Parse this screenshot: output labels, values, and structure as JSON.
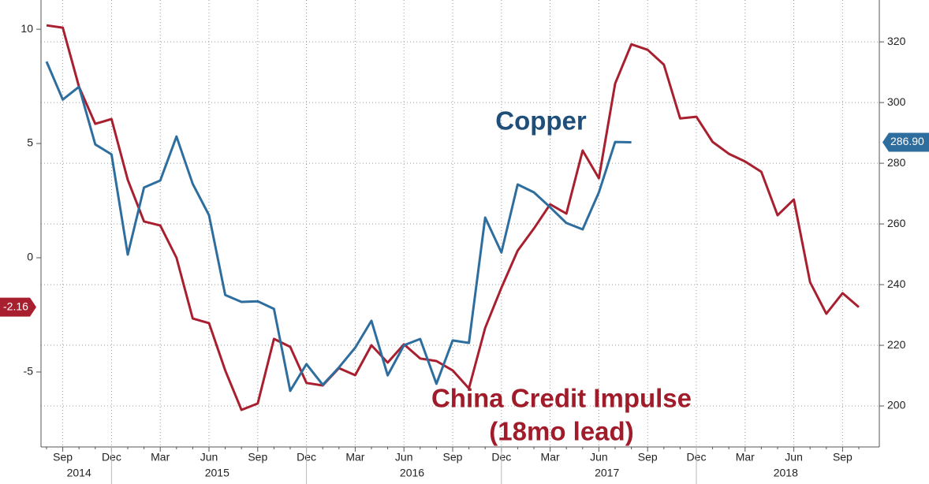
{
  "chart_data": {
    "type": "line",
    "categories": [
      null,
      "Sep",
      null,
      null,
      "Dec",
      null,
      null,
      "Mar",
      null,
      null,
      "Jun",
      null,
      null,
      "Sep",
      null,
      null,
      "Dec",
      null,
      null,
      "Mar",
      null,
      null,
      "Jun",
      null,
      null,
      "Sep",
      null,
      null,
      "Dec",
      null,
      null,
      "Mar",
      null,
      null,
      "Jun",
      null,
      null,
      "Sep",
      null,
      null,
      "Dec",
      null,
      null,
      "Mar",
      null,
      null,
      "Jun",
      null,
      null,
      "Sep",
      null
    ],
    "x_groups": [
      "2014",
      "2015",
      "2016",
      "2017",
      "2018"
    ],
    "series": [
      {
        "name": "China Credit Impulse",
        "color": "#a8202f",
        "axis": "y",
        "values": [
          10.17,
          10.07,
          7.48,
          5.86,
          6.07,
          3.41,
          1.59,
          1.41,
          0,
          -2.66,
          -2.86,
          -4.93,
          -6.66,
          -6.38,
          -3.55,
          -3.9,
          -5.48,
          -5.59,
          -4.83,
          -5.14,
          -3.83,
          -4.59,
          -3.79,
          -4.41,
          -4.52,
          -4.93,
          -5.72,
          -3.07,
          -1.31,
          0.31,
          1.28,
          2.34,
          1.93,
          4.69,
          3.48,
          7.62,
          9.34,
          9.1,
          8.45,
          6.1,
          6.17,
          5.07,
          4.55,
          4.21,
          3.76,
          1.86,
          2.55,
          -1.07,
          -2.45,
          -1.55,
          -2.16
        ]
      },
      {
        "name": "Copper",
        "color": "#2e6e9e",
        "axis": "y2",
        "values": [
          313.5,
          301.0,
          305.2,
          286.2,
          282.9,
          249.9,
          272.0,
          274.3,
          288.8,
          273.2,
          262.9,
          236.6,
          234.3,
          234.5,
          232.0,
          205.0,
          213.8,
          207.0,
          212.7,
          219.2,
          228.1,
          210.1,
          220.0,
          222.1,
          207.3,
          221.6,
          220.8,
          262.1,
          250.6,
          273.0,
          270.4,
          265.5,
          260.3,
          258.2,
          270.4,
          287.0,
          286.9,
          null,
          null,
          null,
          null,
          null,
          null,
          null,
          null,
          null,
          null,
          null,
          null,
          null,
          null
        ],
        "value_labels": [
          null,
          null,
          null,
          null,
          null,
          null,
          null,
          null,
          null,
          null,
          null,
          null,
          null,
          null,
          null,
          null,
          null,
          null,
          null,
          null,
          null,
          null,
          null,
          null,
          null,
          null,
          null,
          null,
          null,
          null,
          null,
          null,
          null,
          null,
          null,
          null,
          "286.90",
          null,
          null,
          null,
          null,
          null,
          null,
          null,
          null,
          null,
          null,
          null,
          null,
          null,
          null
        ]
      }
    ],
    "annotations": [
      "Copper",
      "China Credit Impulse",
      "(18mo lead)"
    ],
    "ylim": [
      -8.28,
      11.28
    ],
    "yticks": [
      -5,
      0,
      5,
      10
    ],
    "y2lim": [
      186.5,
      333.8
    ],
    "y2ticks": [
      200,
      220,
      240,
      260,
      280,
      300,
      320
    ],
    "grid": true
  }
}
